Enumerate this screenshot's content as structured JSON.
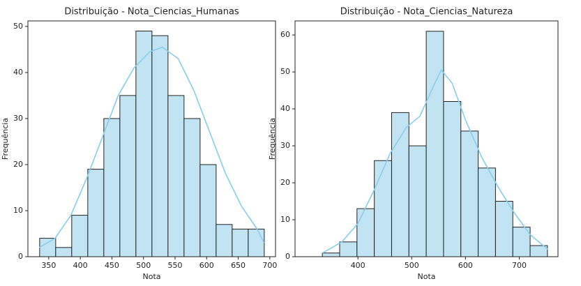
{
  "chart_data": [
    {
      "type": "histogram",
      "title": "Distribuição - Nota_Ciencias_Humanas",
      "xlabel": "Nota",
      "ylabel": "Frequência",
      "bins": [
        335.6,
        361,
        386.4,
        411.8,
        437.2,
        462.6,
        488,
        513.4,
        538.8,
        564.2,
        589.6,
        615,
        640.4,
        665.8,
        691.2
      ],
      "values": [
        4,
        2,
        9,
        19,
        30,
        35,
        49,
        48,
        35,
        30,
        20,
        7,
        6,
        6
      ],
      "color": "#c2e4f2",
      "edgecolor": "#222222",
      "kde": {
        "color": "#87ceeb",
        "x": [
          335,
          360,
          385,
          410,
          435,
          460,
          485,
          510,
          530,
          555,
          580,
          605,
          630,
          655,
          680,
          691
        ],
        "y": [
          2,
          4,
          9,
          17,
          26,
          35,
          41,
          44.5,
          45.5,
          43,
          36,
          27,
          18,
          11,
          6,
          3
        ]
      },
      "xlim": [
        317,
        709
      ],
      "ylim": [
        0,
        51.2
      ],
      "xticks": [
        350,
        400,
        450,
        500,
        550,
        600,
        650,
        700
      ],
      "yticks": [
        0,
        10,
        20,
        30,
        40,
        50
      ]
    },
    {
      "type": "histogram",
      "title": "Distribuição - Nota_Ciencias_Natureza",
      "xlabel": "Nota",
      "ylabel": "Frequência",
      "bins": [
        333.8,
        366,
        398.2,
        430.4,
        462.6,
        494.8,
        527,
        559.2,
        591.4,
        623.6,
        655.8,
        688,
        720.2,
        752.4
      ],
      "values": [
        1,
        4,
        13,
        26,
        39,
        30,
        61,
        42,
        34,
        24,
        15,
        8,
        3
      ],
      "color": "#c2e4f2",
      "edgecolor": "#222222",
      "kde": {
        "color": "#87ceeb",
        "x": [
          334,
          370,
          400,
          430,
          460,
          490,
          515,
          540,
          555,
          575,
          600,
          630,
          660,
          690,
          720,
          753
        ],
        "y": [
          1,
          4,
          9,
          18,
          28,
          35,
          38,
          46,
          50.5,
          47,
          37,
          27,
          19,
          12,
          6,
          2
        ]
      },
      "xlim": [
        283,
        772
      ],
      "ylim": [
        0,
        63.8
      ],
      "xticks": [
        400,
        500,
        600,
        700
      ],
      "yticks": [
        0,
        10,
        20,
        30,
        40,
        50,
        60
      ]
    }
  ]
}
